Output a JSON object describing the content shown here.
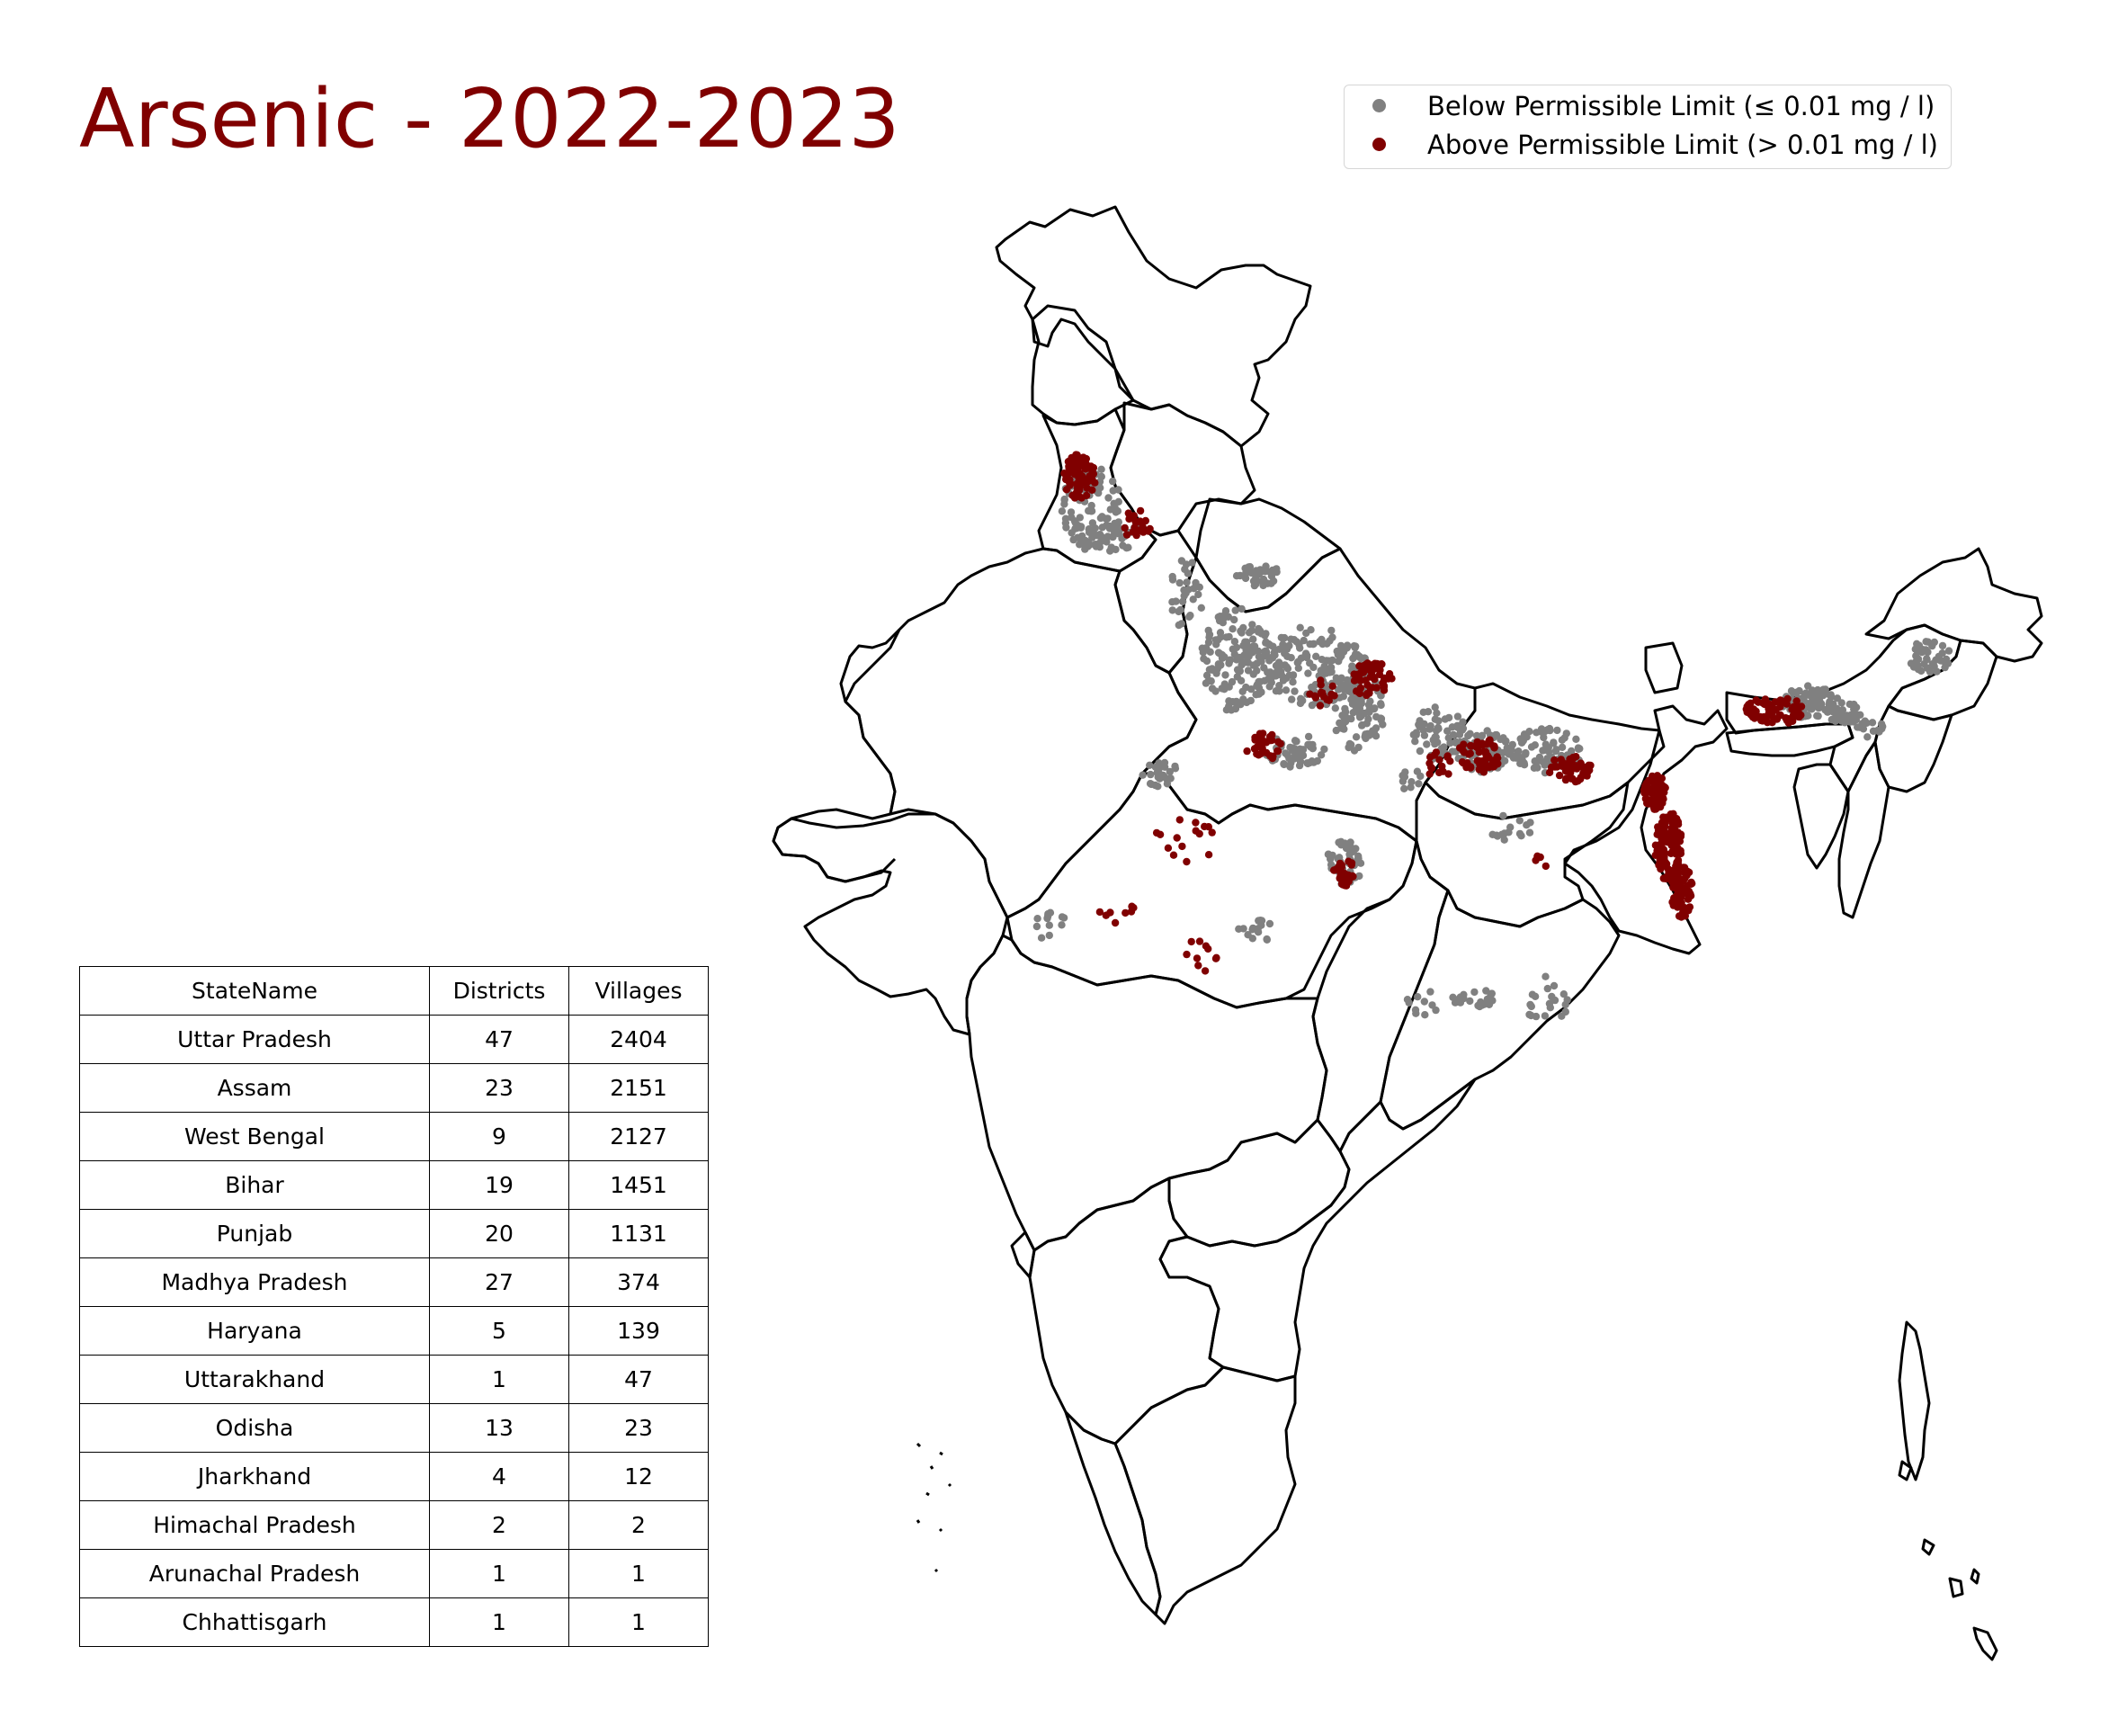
{
  "title": "Arsenic - 2022-2023",
  "colors": {
    "title": "#800000",
    "below": "#808080",
    "above": "#800000",
    "boundary": "#000000"
  },
  "legend": {
    "below_label": "Below Permissible Limit (≤ 0.01 mg / l)",
    "above_label": "Above Permissible Limit (> 0.01 mg / l)"
  },
  "table": {
    "headers": [
      "StateName",
      "Districts",
      "Villages"
    ],
    "rows": [
      [
        "Uttar Pradesh",
        "47",
        "2404"
      ],
      [
        "Assam",
        "23",
        "2151"
      ],
      [
        "West Bengal",
        "9",
        "2127"
      ],
      [
        "Bihar",
        "19",
        "1451"
      ],
      [
        "Punjab",
        "20",
        "1131"
      ],
      [
        "Madhya Pradesh",
        "27",
        "374"
      ],
      [
        "Haryana",
        "5",
        "139"
      ],
      [
        "Uttarakhand",
        "1",
        "47"
      ],
      [
        "Odisha",
        "13",
        "23"
      ],
      [
        "Jharkhand",
        "4",
        "12"
      ],
      [
        "Himachal Pradesh",
        "2",
        "2"
      ],
      [
        "Arunachal Pradesh",
        "1",
        "1"
      ],
      [
        "Chhattisgarh",
        "1",
        "1"
      ]
    ]
  }
}
